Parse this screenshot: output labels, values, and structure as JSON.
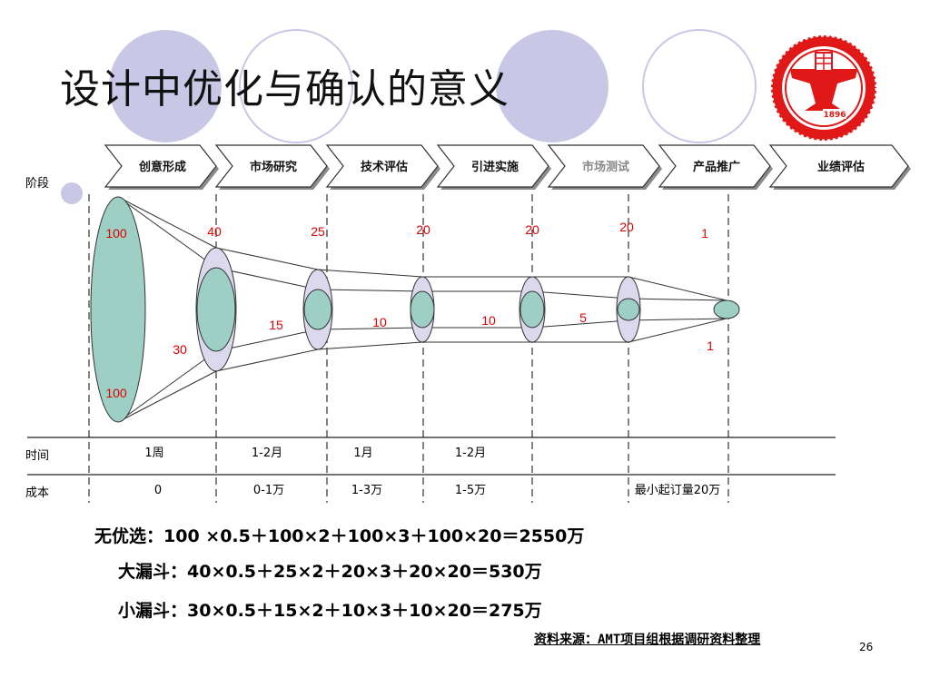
{
  "title": "设计中优化与确认的意义",
  "row_labels": {
    "stage": "阶段",
    "time": "时间",
    "cost": "成本"
  },
  "stages": [
    {
      "label": "创意形成",
      "muted": false
    },
    {
      "label": "市场研究",
      "muted": false
    },
    {
      "label": "技术评估",
      "muted": false
    },
    {
      "label": "引进实施",
      "muted": false
    },
    {
      "label": "市场测试",
      "muted": true
    },
    {
      "label": "产品推广",
      "muted": false
    },
    {
      "label": "业绩评估",
      "muted": false
    }
  ],
  "funnel": {
    "large_counts": [
      "100",
      "40",
      "25",
      "20",
      "20",
      "20",
      "1"
    ],
    "small_counts": [
      "100",
      "30",
      "15",
      "10",
      "10",
      "5",
      "1"
    ]
  },
  "time_values": [
    "1周",
    "1-2月",
    "1月",
    "1-2月"
  ],
  "cost_values": [
    "0",
    "0-1万",
    "1-3万",
    "1-5万",
    "最小起订量20万"
  ],
  "formulas": [
    "无优选：100 ×0.5＋100×2＋100×3＋100×20＝2550万",
    "大漏斗：40×0.5＋25×2＋20×3＋20×20＝530万",
    "小漏斗：30×0.5＋15×2＋10×3＋10×20＝275万"
  ],
  "source": "资料来源：AMT项目组根据调研资料整理",
  "page_number": "26",
  "logo": {
    "year_text": "1896"
  },
  "colors": {
    "ellipse_fill": "#9dcfc4",
    "outer_ellipse_fill": "#dcd8ee",
    "deco_circle": "#c8c8e6",
    "count_red": "#e00000",
    "logo_red": "#e01818"
  }
}
